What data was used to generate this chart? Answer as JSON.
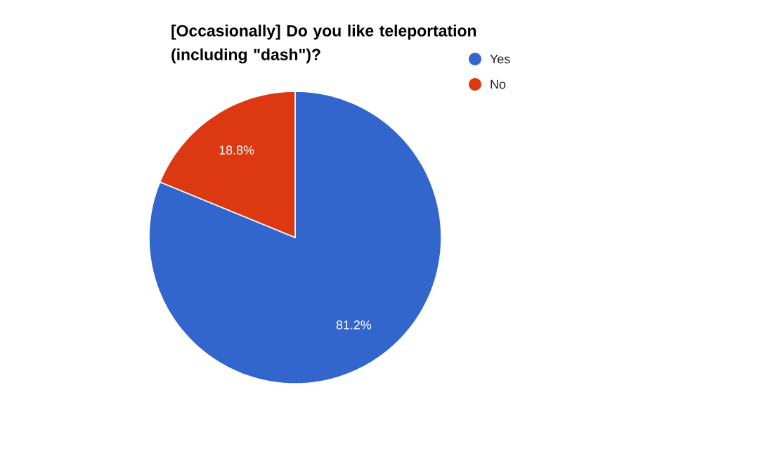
{
  "chart_data": {
    "type": "pie",
    "title": "[Occasionally] Do you like teleportation (including \"dash\")?",
    "categories": [
      "Yes",
      "No"
    ],
    "values": [
      81.2,
      18.8
    ],
    "colors": [
      "#3366cc",
      "#dc3912"
    ],
    "value_labels": [
      "81.2%",
      "18.8%"
    ],
    "legend": "right"
  }
}
